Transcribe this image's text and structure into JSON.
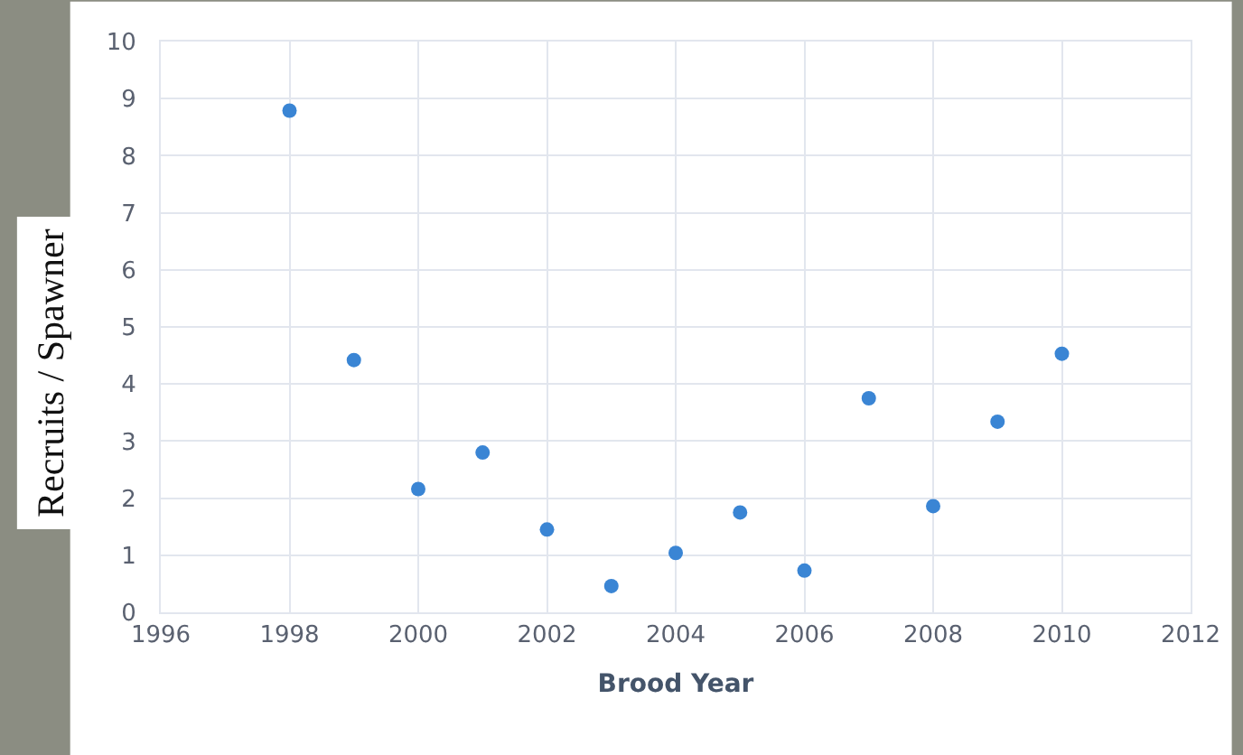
{
  "chart_data": {
    "type": "scatter",
    "xlabel": "Brood Year",
    "ylabel": "Recruits / Spawner",
    "x": [
      1998,
      1999,
      2000,
      2001,
      2002,
      2003,
      2004,
      2005,
      2006,
      2007,
      2008,
      2009,
      2010
    ],
    "series": [
      {
        "color": "#3a85d4",
        "values": [
          8.79,
          4.42,
          2.16,
          2.8,
          1.45,
          0.46,
          1.04,
          1.75,
          0.73,
          3.75,
          1.86,
          3.34,
          4.53
        ]
      }
    ],
    "xlim": [
      1996,
      2012
    ],
    "xticks": [
      1996,
      1998,
      2000,
      2002,
      2004,
      2006,
      2008,
      2010,
      2012
    ],
    "ylim": [
      0,
      10
    ],
    "yticks": [
      0,
      1,
      2,
      3,
      4,
      5,
      6,
      7,
      8,
      9,
      10
    ],
    "grid": true,
    "marker": "circle"
  }
}
